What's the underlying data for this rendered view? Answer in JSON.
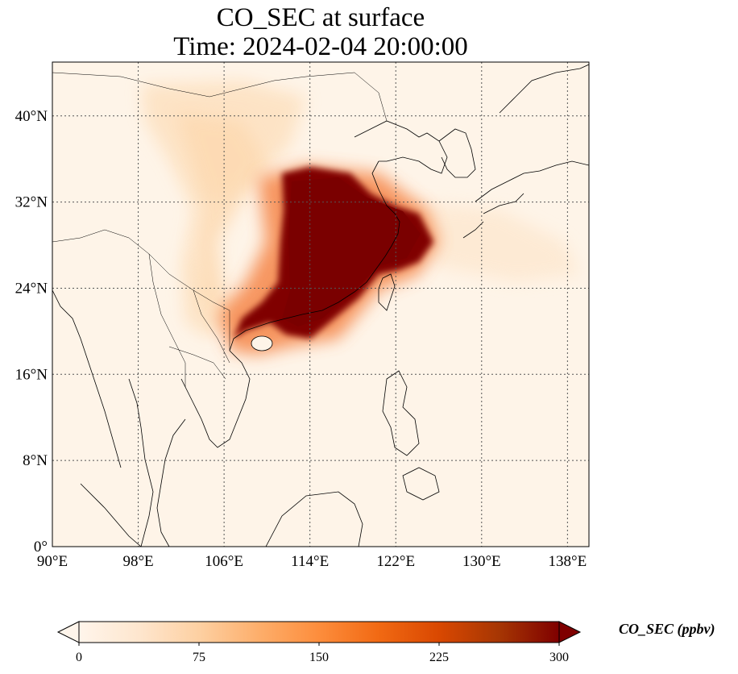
{
  "title_line1": "CO_SEC at surface",
  "title_line2": "Time: 2024-02-04 20:00:00",
  "map": {
    "lon_range": [
      90,
      140
    ],
    "lat_range": [
      0,
      45
    ],
    "lon_ticks": [
      90,
      98,
      106,
      114,
      122,
      130,
      138
    ],
    "lat_ticks": [
      0,
      8,
      16,
      24,
      32,
      40
    ],
    "lon_tick_labels": [
      "90°E",
      "98°E",
      "106°E",
      "114°E",
      "122°E",
      "130°E",
      "138°E"
    ],
    "lat_tick_labels": [
      "0°",
      "8°N",
      "16°N",
      "24°N",
      "32°N",
      "40°N"
    ],
    "gridlines": true
  },
  "colorbar": {
    "label": "CO_SEC (ppbv)",
    "ticks": [
      "0",
      "75",
      "150",
      "225",
      "300"
    ],
    "min": 0,
    "max": 300,
    "extend": "both",
    "colormap": [
      "#fff5eb",
      "#fee6ce",
      "#fdd0a2",
      "#fdae6b",
      "#fd8d3c",
      "#f16913",
      "#d94801",
      "#a63603",
      "#7f0000"
    ]
  }
}
